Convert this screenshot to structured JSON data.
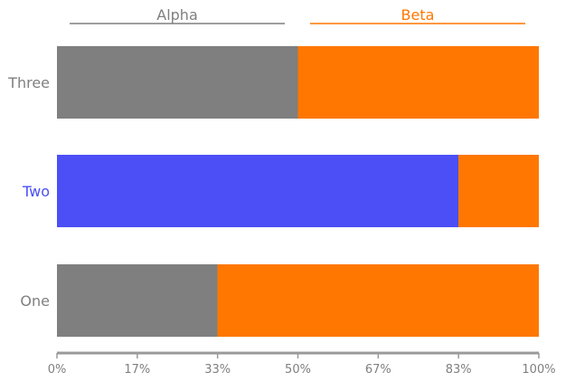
{
  "chart_data": {
    "type": "bar",
    "orientation": "horizontal",
    "stacked": true,
    "normalized": true,
    "categories": [
      "One",
      "Two",
      "Three"
    ],
    "highlighted_category": "Two",
    "series": [
      {
        "name": "Alpha",
        "values": [
          33.3,
          83.3,
          50.0
        ],
        "color": "#7f7f7f"
      },
      {
        "name": "Beta",
        "values": [
          66.7,
          16.7,
          50.0
        ],
        "color": "#ff7700"
      }
    ],
    "highlight_color": "#4b4ff5",
    "xticks": [
      "0%",
      "17%",
      "33%",
      "50%",
      "67%",
      "83%",
      "100%"
    ],
    "xlim": [
      0,
      100
    ],
    "legend_position": "top",
    "grid": false
  }
}
